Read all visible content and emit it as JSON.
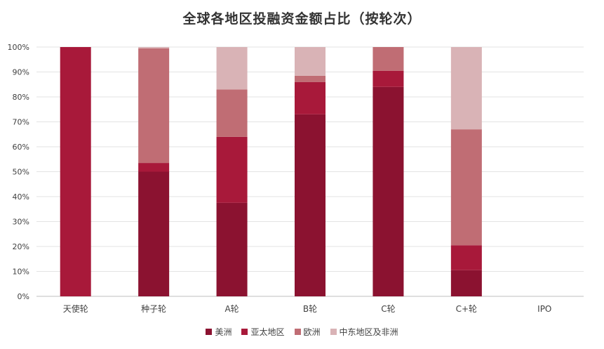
{
  "chart_data": {
    "type": "bar",
    "stacked": true,
    "title": "全球各地区投融资金额占比（按轮次）",
    "categories": [
      "天使轮",
      "种子轮",
      "A轮",
      "B轮",
      "C轮",
      "C+轮",
      "IPO"
    ],
    "y_ticks": [
      "0%",
      "10%",
      "20%",
      "30%",
      "40%",
      "50%",
      "60%",
      "70%",
      "80%",
      "90%",
      "100%"
    ],
    "ylim": [
      0,
      100
    ],
    "grid": true,
    "legend_position": "bottom",
    "series": [
      {
        "name": "美洲",
        "color": "#8B1230",
        "values": [
          0,
          50,
          37.5,
          73,
          84,
          10.5,
          0
        ]
      },
      {
        "name": "亚太地区",
        "color": "#A8193A",
        "values": [
          100,
          3.5,
          26.5,
          13,
          6.5,
          10,
          0
        ]
      },
      {
        "name": "欧洲",
        "color": "#C06D74",
        "values": [
          0,
          46,
          19,
          2.5,
          9.5,
          46.5,
          0
        ]
      },
      {
        "name": "中东地区及非洲",
        "color": "#D9B3B6",
        "values": [
          0,
          0.5,
          17,
          11.5,
          0,
          33,
          0
        ]
      }
    ]
  }
}
